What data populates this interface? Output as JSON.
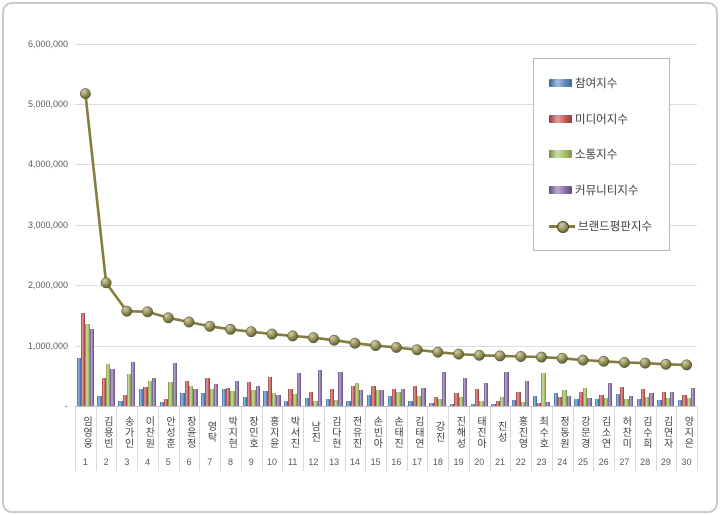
{
  "chart_data": {
    "type": "bar",
    "subtype": "grouped-bars-with-line-overlay",
    "title": "",
    "categories": [
      "임영웅",
      "김용빈",
      "송가인",
      "이찬원",
      "안성훈",
      "장윤정",
      "영탁",
      "박지현",
      "장민호",
      "홍지윤",
      "박서진",
      "남진",
      "김다현",
      "전유진",
      "손빈아",
      "손태진",
      "김태연",
      "강진",
      "진해성",
      "태진아",
      "진성",
      "홍진영",
      "최수호",
      "정동원",
      "강문경",
      "김소연",
      "허찬미",
      "김수희",
      "김연자",
      "양지은"
    ],
    "ranks": [
      "1",
      "2",
      "3",
      "4",
      "5",
      "6",
      "7",
      "8",
      "9",
      "10",
      "11",
      "12",
      "13",
      "14",
      "15",
      "16",
      "17",
      "18",
      "19",
      "20",
      "21",
      "22",
      "23",
      "24",
      "25",
      "26",
      "27",
      "28",
      "29",
      "30"
    ],
    "series": [
      {
        "name": "참여지수",
        "type": "bar",
        "color": "#4F81BD",
        "values": [
          790000,
          160000,
          80000,
          280000,
          60000,
          210000,
          210000,
          280000,
          150000,
          250000,
          90000,
          130000,
          110000,
          90000,
          180000,
          160000,
          90000,
          50000,
          40000,
          30000,
          40000,
          100000,
          170000,
          210000,
          110000,
          110000,
          200000,
          110000,
          100000,
          100000
        ]
      },
      {
        "name": "미디어지수",
        "type": "bar",
        "color": "#C0504D",
        "values": [
          1540000,
          460000,
          190000,
          320000,
          110000,
          420000,
          460000,
          300000,
          390000,
          480000,
          280000,
          240000,
          280000,
          340000,
          330000,
          290000,
          330000,
          150000,
          220000,
          290000,
          80000,
          240000,
          50000,
          150000,
          240000,
          190000,
          310000,
          280000,
          240000,
          180000
        ]
      },
      {
        "name": "소통지수",
        "type": "bar",
        "color": "#9BBB59",
        "values": [
          1360000,
          700000,
          530000,
          420000,
          390000,
          340000,
          290000,
          250000,
          270000,
          220000,
          200000,
          90000,
          100000,
          380000,
          270000,
          240000,
          160000,
          110000,
          150000,
          90000,
          150000,
          70000,
          550000,
          270000,
          300000,
          130000,
          110000,
          150000,
          140000,
          140000
        ]
      },
      {
        "name": "커뮤니티지수",
        "type": "bar",
        "color": "#8064A2",
        "values": [
          1280000,
          620000,
          730000,
          470000,
          710000,
          290000,
          370000,
          420000,
          330000,
          180000,
          550000,
          600000,
          560000,
          270000,
          260000,
          280000,
          300000,
          570000,
          460000,
          380000,
          560000,
          410000,
          70000,
          170000,
          140000,
          380000,
          160000,
          210000,
          230000,
          300000
        ]
      },
      {
        "name": "브랜드평판지수",
        "type": "line",
        "color": "#8A8440",
        "values": [
          5170000,
          2040000,
          1570000,
          1560000,
          1460000,
          1390000,
          1320000,
          1270000,
          1230000,
          1190000,
          1160000,
          1130000,
          1090000,
          1040000,
          1000000,
          970000,
          930000,
          890000,
          860000,
          840000,
          830000,
          820000,
          810000,
          790000,
          760000,
          740000,
          720000,
          710000,
          690000,
          680000
        ]
      }
    ],
    "y_axis": {
      "min": 0,
      "max": 6000000,
      "tick_interval": 1000000,
      "tick_labels": [
        "-",
        "1,000,000",
        "2,000,000",
        "3,000,000",
        "4,000,000",
        "5,000,000",
        "6,000,000"
      ]
    },
    "legend": {
      "position": "top-right",
      "entries": [
        "참여지수",
        "미디어지수",
        "소통지수",
        "커뮤니티지수",
        "브랜드평판지수"
      ]
    },
    "grid": true
  }
}
